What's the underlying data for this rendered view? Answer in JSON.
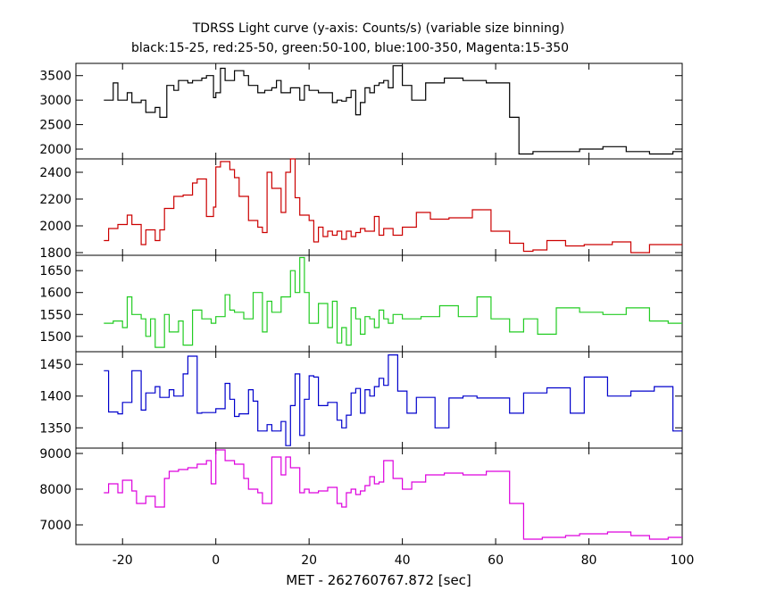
{
  "header": {
    "title": "TDRSS Light curve (y-axis: Counts/s) (variable size binning)",
    "subtitle": "black:15-25, red:25-50, green:50-100, blue:100-350, Magenta:15-350"
  },
  "chart_data": {
    "type": "line",
    "step": true,
    "xlabel": "MET - 262760767.872 [sec]",
    "xlim": [
      -30,
      100
    ],
    "xticks": [
      -20,
      0,
      20,
      40,
      60,
      80,
      100
    ],
    "panels": [
      {
        "name": "black:15-25",
        "color": "#000000",
        "ylim": [
          1800,
          3750
        ],
        "yticks": [
          2000,
          2500,
          3000,
          3500
        ],
        "x": [
          -24,
          -22,
          -21,
          -19,
          -18,
          -16,
          -15,
          -13,
          -12,
          -10.5,
          -9,
          -8,
          -6,
          -5,
          -3,
          -2,
          -0.5,
          0,
          1,
          2,
          4,
          6,
          7,
          9,
          10.5,
          12,
          13,
          14,
          16,
          18,
          19,
          20,
          22,
          25,
          26,
          27,
          28,
          29,
          30,
          31,
          32,
          33,
          34,
          35,
          36,
          37,
          38,
          40,
          42,
          45,
          49,
          53,
          58,
          63,
          65,
          68,
          73,
          78,
          83,
          88,
          93,
          98
        ],
        "y": [
          3000,
          3350,
          3000,
          3150,
          2950,
          3000,
          2750,
          2850,
          2650,
          3300,
          3200,
          3400,
          3350,
          3400,
          3450,
          3500,
          3050,
          3150,
          3650,
          3400,
          3600,
          3500,
          3300,
          3150,
          3200,
          3250,
          3400,
          3150,
          3250,
          3000,
          3300,
          3200,
          3150,
          2950,
          3000,
          2980,
          3050,
          3200,
          2700,
          2950,
          3250,
          3150,
          3300,
          3350,
          3400,
          3250,
          3700,
          3300,
          3000,
          3350,
          3450,
          3400,
          3350,
          2650,
          1900,
          1950,
          1950,
          2000,
          2050,
          1950,
          1900,
          1950
        ]
      },
      {
        "name": "red:25-50",
        "color": "#cc0000",
        "ylim": [
          1780,
          2500
        ],
        "yticks": [
          1800,
          2000,
          2200,
          2400
        ],
        "x": [
          -24,
          -23,
          -21,
          -19,
          -18,
          -16,
          -15,
          -13,
          -12,
          -11,
          -9,
          -7,
          -5,
          -4,
          -2,
          -0.5,
          0,
          1,
          3,
          4,
          5,
          7,
          9,
          10,
          11,
          12,
          14,
          15,
          16,
          17,
          18,
          20,
          21,
          22,
          23,
          24,
          25,
          26,
          27,
          28,
          29,
          30,
          31,
          32,
          34,
          35,
          36,
          38,
          40,
          43,
          46,
          50,
          55,
          59,
          63,
          66,
          68,
          71,
          75,
          79,
          85,
          89,
          93,
          95
        ],
        "y": [
          1890,
          1980,
          2010,
          2080,
          2010,
          1860,
          1970,
          1890,
          1970,
          2130,
          2220,
          2230,
          2320,
          2350,
          2070,
          2140,
          2440,
          2480,
          2420,
          2360,
          2220,
          2040,
          1990,
          1950,
          2400,
          2280,
          2100,
          2400,
          2500,
          2210,
          2080,
          2040,
          1880,
          1990,
          1920,
          1960,
          1930,
          1960,
          1900,
          1960,
          1920,
          1950,
          1980,
          1960,
          2070,
          1930,
          1980,
          1930,
          1990,
          2100,
          2050,
          2060,
          2120,
          1960,
          1870,
          1810,
          1820,
          1890,
          1850,
          1860,
          1880,
          1800,
          1860,
          1860
        ]
      },
      {
        "name": "green:50-100",
        "color": "#22cc22",
        "ylim": [
          1465,
          1685
        ],
        "yticks": [
          1500,
          1550,
          1600,
          1650
        ],
        "x": [
          -24,
          -22,
          -20,
          -19,
          -18,
          -16,
          -15,
          -14,
          -13,
          -11,
          -10,
          -8,
          -7,
          -5,
          -3,
          -1,
          0,
          2,
          3,
          4,
          6,
          8,
          10,
          11,
          12,
          14,
          16,
          17,
          18,
          19,
          20,
          22,
          24,
          25,
          26,
          27,
          28,
          29,
          30,
          31,
          32,
          33,
          34,
          35,
          36,
          37,
          38,
          40,
          44,
          48,
          52,
          56,
          59,
          63,
          66,
          69,
          73,
          78,
          83,
          88,
          93,
          97
        ],
        "y": [
          1530,
          1535,
          1520,
          1590,
          1550,
          1540,
          1500,
          1540,
          1475,
          1550,
          1510,
          1535,
          1480,
          1560,
          1540,
          1530,
          1545,
          1595,
          1560,
          1555,
          1540,
          1600,
          1510,
          1580,
          1555,
          1590,
          1650,
          1600,
          1680,
          1600,
          1530,
          1575,
          1520,
          1580,
          1485,
          1520,
          1480,
          1565,
          1540,
          1505,
          1545,
          1540,
          1520,
          1560,
          1540,
          1530,
          1550,
          1540,
          1545,
          1570,
          1545,
          1590,
          1540,
          1510,
          1540,
          1505,
          1565,
          1555,
          1550,
          1565,
          1535,
          1530
        ]
      },
      {
        "name": "blue:100-350",
        "color": "#0000cc",
        "ylim": [
          1318,
          1470
        ],
        "yticks": [
          1350,
          1400,
          1450
        ],
        "x": [
          -24,
          -23,
          -21,
          -20,
          -18,
          -16,
          -15,
          -13,
          -12,
          -10,
          -9,
          -7,
          -6,
          -4,
          -3,
          0,
          2,
          3,
          4,
          5,
          7,
          8,
          9,
          11,
          12,
          14,
          15,
          16,
          17,
          18,
          19,
          20,
          21,
          22,
          24,
          26,
          27,
          28,
          29,
          30,
          31,
          32,
          33,
          34,
          35,
          36,
          37,
          39,
          41,
          43,
          47,
          50,
          53,
          56,
          63,
          66,
          71,
          76,
          79,
          84,
          89,
          94,
          98
        ],
        "y": [
          1440,
          1375,
          1372,
          1390,
          1440,
          1378,
          1405,
          1415,
          1398,
          1410,
          1400,
          1435,
          1463,
          1373,
          1374,
          1380,
          1420,
          1395,
          1368,
          1372,
          1410,
          1392,
          1345,
          1355,
          1345,
          1360,
          1322,
          1385,
          1435,
          1338,
          1395,
          1432,
          1430,
          1385,
          1390,
          1362,
          1350,
          1370,
          1405,
          1412,
          1373,
          1410,
          1400,
          1415,
          1428,
          1417,
          1465,
          1408,
          1373,
          1398,
          1350,
          1397,
          1400,
          1397,
          1373,
          1405,
          1413,
          1373,
          1430,
          1400,
          1408,
          1415,
          1345
        ]
      },
      {
        "name": "Magenta:15-350",
        "color": "#dd00dd",
        "ylim": [
          6450,
          9150
        ],
        "yticks": [
          7000,
          8000,
          9000
        ],
        "x": [
          -24,
          -23,
          -21,
          -20,
          -18,
          -17,
          -15,
          -13,
          -11,
          -10,
          -8,
          -6,
          -4,
          -2,
          -1,
          0,
          2,
          4,
          6,
          7,
          9,
          10,
          12,
          14,
          15,
          16,
          18,
          19,
          20,
          22,
          24,
          26,
          27,
          28,
          29,
          30,
          31,
          32,
          33,
          34,
          35,
          36,
          38,
          40,
          42,
          45,
          49,
          53,
          58,
          63,
          66,
          70,
          75,
          78,
          84,
          89,
          93,
          97
        ],
        "y": [
          7900,
          8150,
          7900,
          8250,
          7950,
          7600,
          7800,
          7500,
          8300,
          8500,
          8550,
          8600,
          8700,
          8800,
          8150,
          9100,
          8800,
          8700,
          8300,
          8000,
          7900,
          7600,
          8900,
          8400,
          8900,
          8600,
          7900,
          8000,
          7900,
          7950,
          8050,
          7600,
          7500,
          7900,
          8000,
          7850,
          7950,
          8100,
          8350,
          8150,
          8200,
          8800,
          8300,
          8000,
          8200,
          8400,
          8450,
          8400,
          8500,
          7600,
          6600,
          6650,
          6700,
          6750,
          6800,
          6700,
          6600,
          6650
        ]
      }
    ]
  }
}
